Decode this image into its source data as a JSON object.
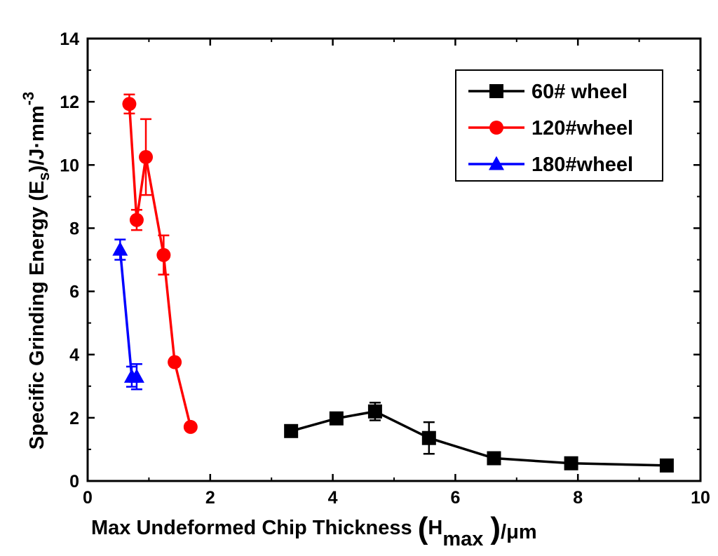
{
  "chart_data": {
    "type": "line",
    "xlabel": {
      "prefix": "Max Undeformed Chip Thickness ",
      "open_paren": "(",
      "symbol": "H",
      "subscript": "max",
      "close_paren": ")",
      "suffix": "/μm"
    },
    "ylabel": {
      "prefix": "Specific Grinding Energy (E",
      "subscript": "s",
      "middle": ")/J·mm",
      "superscript": "-3"
    },
    "xlim": [
      0,
      10
    ],
    "ylim": [
      0,
      14
    ],
    "xticks": [
      0,
      2,
      4,
      6,
      8,
      10
    ],
    "yticks": [
      0,
      2,
      4,
      6,
      8,
      10,
      12,
      14
    ],
    "grid": false,
    "legend_position": "top-right",
    "series": [
      {
        "name": "60# wheel",
        "color": "#000000",
        "marker": "square",
        "x": [
          3.32,
          4.06,
          4.69,
          5.57,
          6.63,
          7.89,
          9.45
        ],
        "y": [
          1.58,
          1.98,
          2.2,
          1.36,
          0.72,
          0.56,
          0.49
        ],
        "error": [
          0.08,
          0.12,
          0.28,
          0.5,
          0.08,
          0.06,
          0.06
        ]
      },
      {
        "name": "120#wheel",
        "color": "#ff0000",
        "marker": "circle",
        "x": [
          0.68,
          0.8,
          0.95,
          1.24,
          1.42,
          1.68
        ],
        "y": [
          11.93,
          8.26,
          10.25,
          7.15,
          3.76,
          1.71
        ],
        "error": [
          0.3,
          0.32,
          1.2,
          0.62,
          0.08,
          0.05
        ]
      },
      {
        "name": "180#wheel",
        "color": "#0000ff",
        "marker": "triangle",
        "x": [
          0.53,
          0.72,
          0.8
        ],
        "y": [
          7.32,
          3.3,
          3.3
        ],
        "error": [
          0.32,
          0.32,
          0.4
        ]
      }
    ]
  }
}
